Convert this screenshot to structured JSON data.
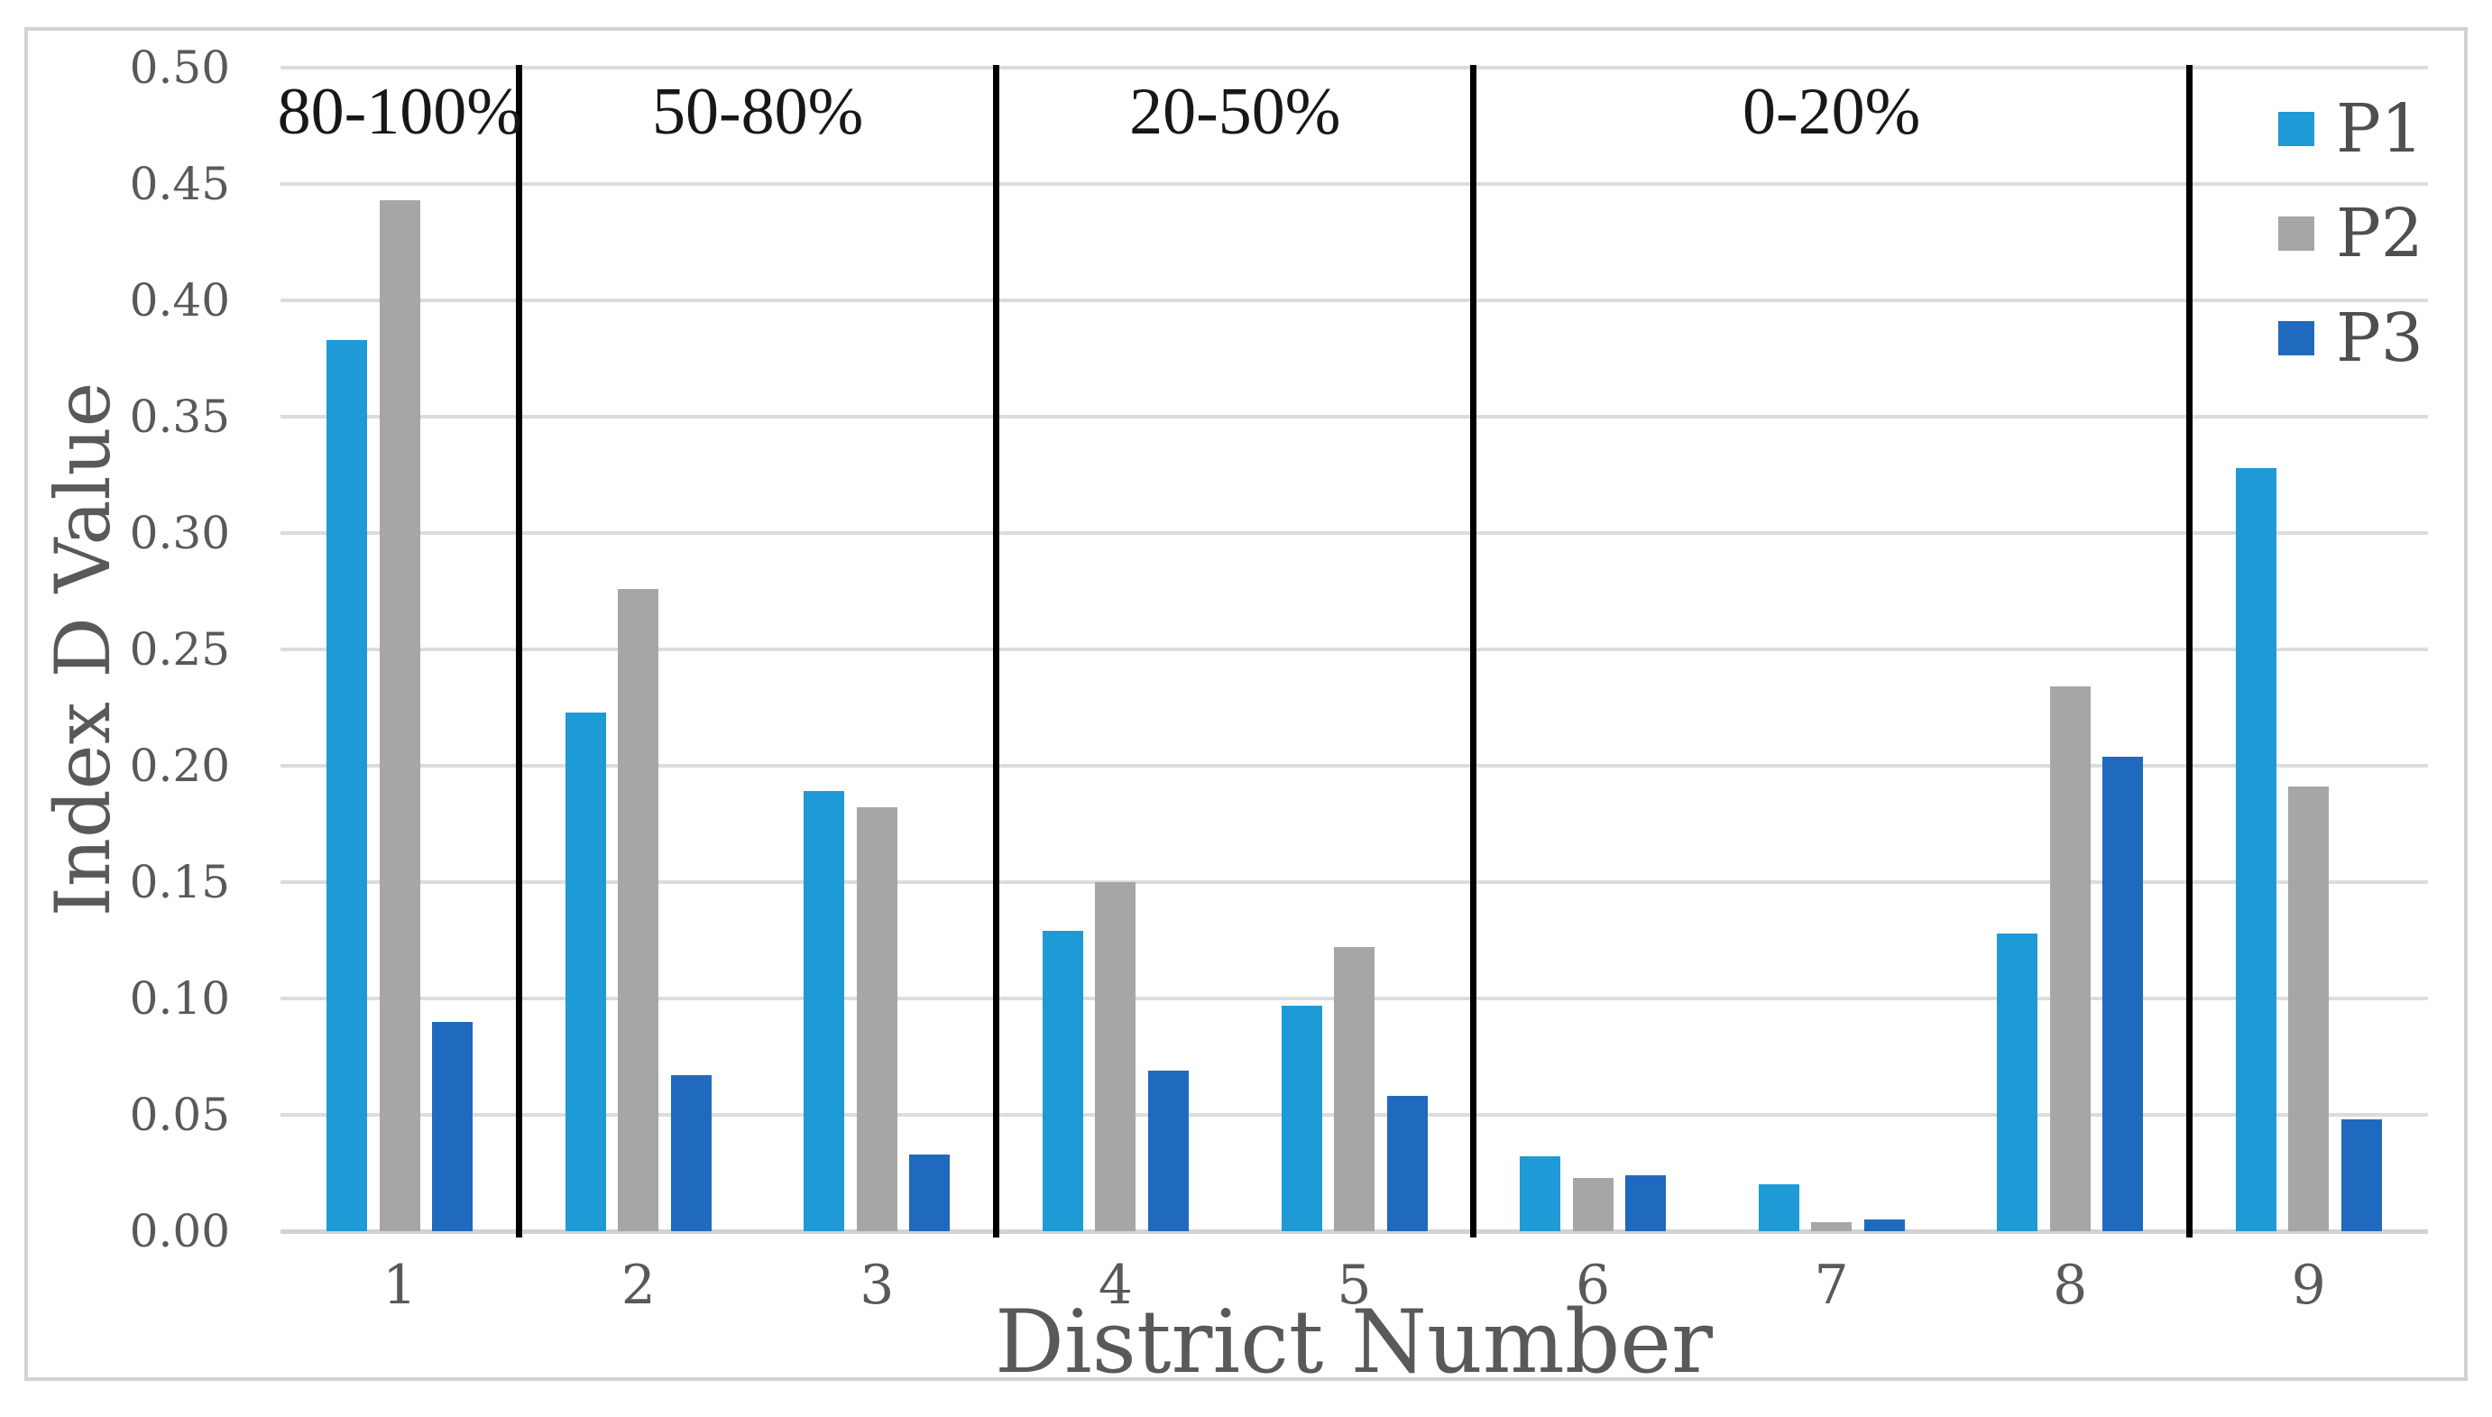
{
  "chart_data": {
    "type": "bar",
    "title": "",
    "xlabel": "District Number",
    "ylabel": "Index D Value",
    "categories": [
      "1",
      "2",
      "3",
      "4",
      "5",
      "6",
      "7",
      "8",
      "9"
    ],
    "series": [
      {
        "name": "P1",
        "color": "#1e9ad6",
        "values": [
          0.383,
          0.223,
          0.189,
          0.129,
          0.097,
          0.032,
          0.02,
          0.128,
          0.328
        ]
      },
      {
        "name": "P2",
        "color": "#a6a6a6",
        "values": [
          0.443,
          0.276,
          0.182,
          0.15,
          0.122,
          0.023,
          0.004,
          0.234,
          0.191
        ]
      },
      {
        "name": "P3",
        "color": "#1f6abe",
        "values": [
          0.09,
          0.067,
          0.033,
          0.069,
          0.058,
          0.024,
          0.005,
          0.204,
          0.048
        ]
      }
    ],
    "ylim": [
      0,
      0.5
    ],
    "ytick_step": 0.05,
    "ytick_labels": [
      "0.00",
      "0.05",
      "0.10",
      "0.15",
      "0.20",
      "0.25",
      "0.30",
      "0.35",
      "0.40",
      "0.45",
      "0.50"
    ],
    "grid": "horizontal",
    "legend_position": "top-right",
    "legend_items": [
      "P1",
      "P2",
      "P3"
    ],
    "sections": [
      {
        "label": "80-100%",
        "span": [
          0,
          0
        ]
      },
      {
        "label": "50-80%",
        "span": [
          1,
          2
        ]
      },
      {
        "label": "20-50%",
        "span": [
          3,
          4
        ]
      },
      {
        "label": "0-20%",
        "span": [
          5,
          7
        ]
      },
      {
        "label": "",
        "span": [
          8,
          8
        ]
      }
    ]
  },
  "colors": {
    "grid": "#dcdcdc",
    "baseline": "#d2d2d2",
    "border": "#d2d2d2",
    "separator": "#000000",
    "axis_text": "#595959",
    "section_text": "#171717",
    "background": "#ffffff"
  }
}
